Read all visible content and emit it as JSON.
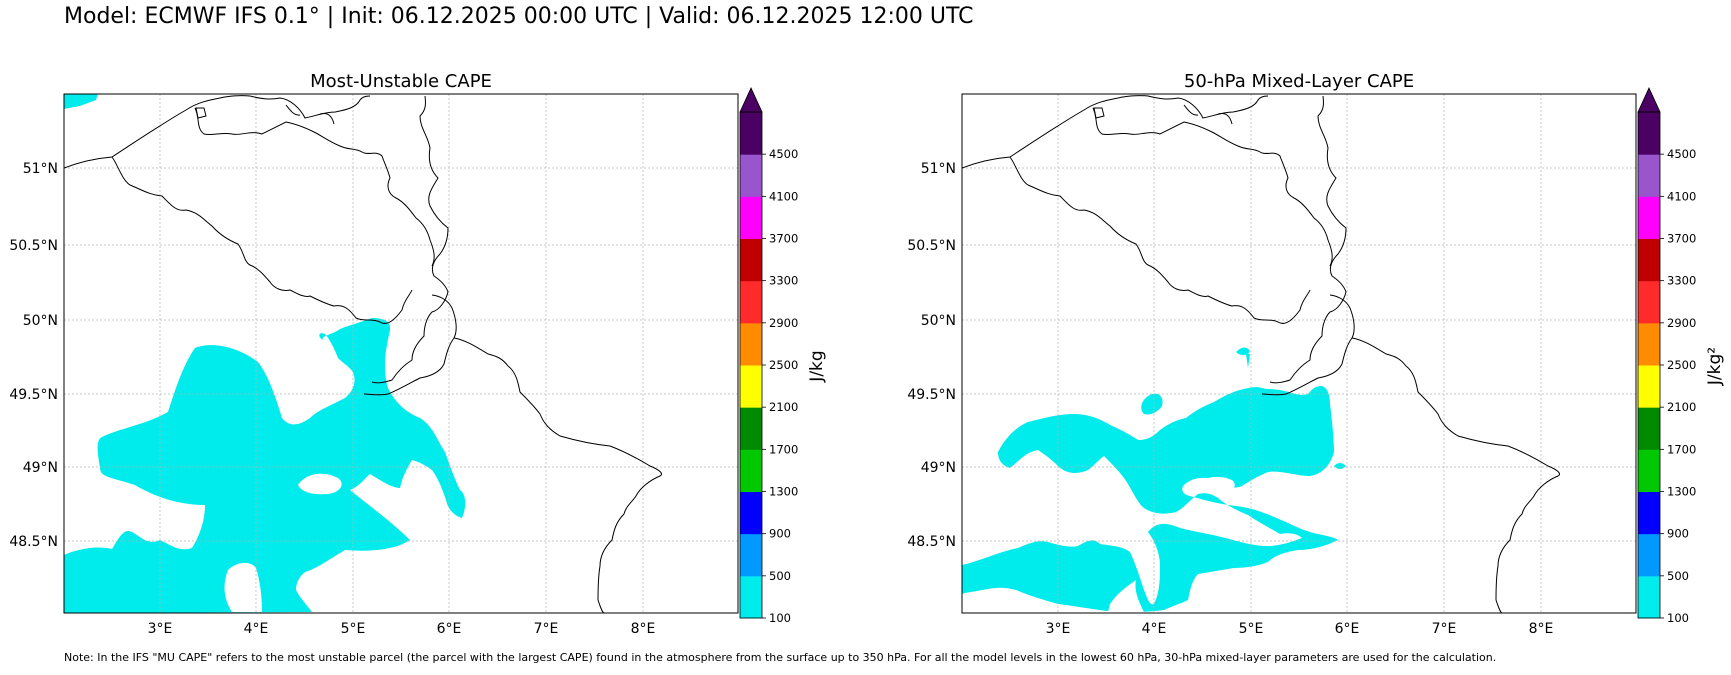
{
  "suptitle": "Model: ECMWF IFS 0.1° | Init: 06.12.2025 00:00 UTC | Valid: 06.12.2025 12:00 UTC",
  "note": "Note: In the IFS \"MU CAPE\" refers to the most unstable parcel (the parcel with the largest CAPE) found in the atmosphere from the surface up to 350 hPa. For all the model levels in the lowest 60 hPa, 30-hPa mixed-layer parameters are used for the calculation.",
  "extent": {
    "lon": [
      2.02,
      9.0
    ],
    "lat": [
      48.03,
      51.49
    ]
  },
  "lon_ticks": [
    "3°E",
    "4°E",
    "5°E",
    "6°E",
    "7°E",
    "8°E"
  ],
  "lat_ticks": [
    "48.5°N",
    "49°N",
    "49.5°N",
    "50°N",
    "50.5°N",
    "51°N"
  ],
  "gridlines": true,
  "fill_color": "#00EBEB",
  "colorbar": {
    "levels": [
      "100",
      "500",
      "900",
      "1300",
      "1700",
      "2100",
      "2500",
      "2900",
      "3300",
      "3700",
      "4100",
      "4500"
    ],
    "colors": [
      "#00EBEB",
      "#0099FF",
      "#0000FF",
      "#00C800",
      "#008A00",
      "#FFFF00",
      "#FF8C00",
      "#FF2A2A",
      "#C00000",
      "#FF00FF",
      "#9955CC",
      "#4B0064"
    ],
    "extend": "max"
  },
  "panels": [
    {
      "title": "Most-Unstable CAPE",
      "units": "J/kg"
    },
    {
      "title": "50-hPa Mixed-Layer CAPE",
      "units": "J/kg²"
    }
  ]
}
